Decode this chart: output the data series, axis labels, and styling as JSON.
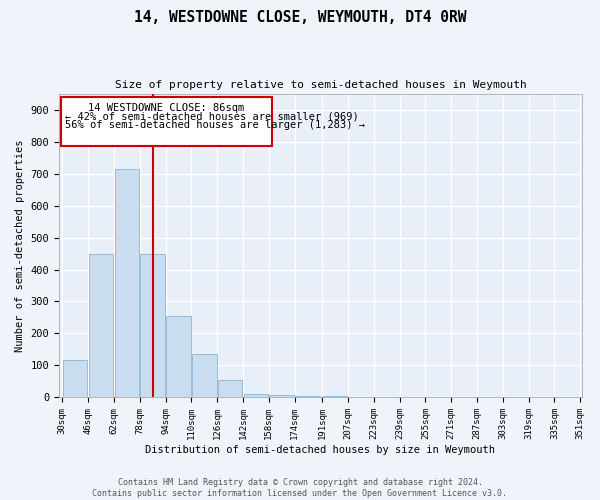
{
  "title": "14, WESTDOWNE CLOSE, WEYMOUTH, DT4 0RW",
  "subtitle": "Size of property relative to semi-detached houses in Weymouth",
  "xlabel": "Distribution of semi-detached houses by size in Weymouth",
  "ylabel": "Number of semi-detached properties",
  "property_size": 86,
  "annotation_line1": "14 WESTDOWNE CLOSE: 86sqm",
  "annotation_line2": "← 42% of semi-detached houses are smaller (969)",
  "annotation_line3": "56% of semi-detached houses are larger (1,283) →",
  "bin_edges": [
    30,
    46,
    62,
    78,
    94,
    110,
    126,
    142,
    158,
    174,
    191,
    207,
    223,
    239,
    255,
    271,
    287,
    303,
    319,
    335,
    351
  ],
  "bar_heights": [
    117,
    447,
    715,
    447,
    254,
    135,
    55,
    12,
    8,
    5,
    5,
    3,
    3,
    2,
    1,
    0,
    1,
    0,
    0,
    0
  ],
  "bar_color": "#c9dcf0",
  "bar_edge_color": "#8ab4d8",
  "marker_color": "#cc0000",
  "background_color": "#e8eff9",
  "fig_background_color": "#f0f4fa",
  "grid_color": "#ffffff",
  "ylim": [
    0,
    950
  ],
  "yticks": [
    0,
    100,
    200,
    300,
    400,
    500,
    600,
    700,
    800,
    900
  ],
  "footer_line1": "Contains HM Land Registry data © Crown copyright and database right 2024.",
  "footer_line2": "Contains public sector information licensed under the Open Government Licence v3.0."
}
